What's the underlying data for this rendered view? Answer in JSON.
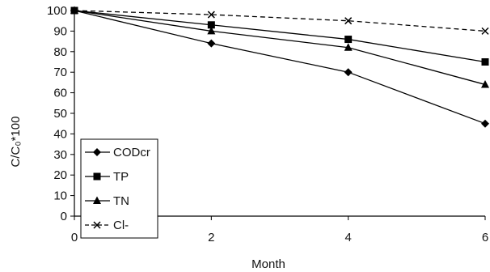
{
  "chart_data": {
    "type": "line",
    "title": "",
    "xlabel": "Month",
    "ylabel": "C/C₀*100",
    "x": [
      0,
      2,
      4,
      6
    ],
    "xticks": [
      0,
      2,
      4,
      6
    ],
    "xlim": [
      0,
      6
    ],
    "yticks": [
      0,
      10,
      20,
      30,
      40,
      50,
      60,
      70,
      80,
      90,
      100
    ],
    "ylim": [
      0,
      100
    ],
    "grid": false,
    "legend_position": "left",
    "series": [
      {
        "name": "CODcr",
        "marker": "diamond",
        "values": [
          100,
          84,
          70,
          45
        ]
      },
      {
        "name": "TP",
        "marker": "square",
        "values": [
          100,
          93,
          86,
          75
        ]
      },
      {
        "name": "TN",
        "marker": "triangle",
        "values": [
          100,
          90,
          82,
          64
        ]
      },
      {
        "name": "Cl-",
        "marker": "x",
        "dashed": true,
        "values": [
          100,
          98,
          95,
          90
        ]
      }
    ]
  }
}
